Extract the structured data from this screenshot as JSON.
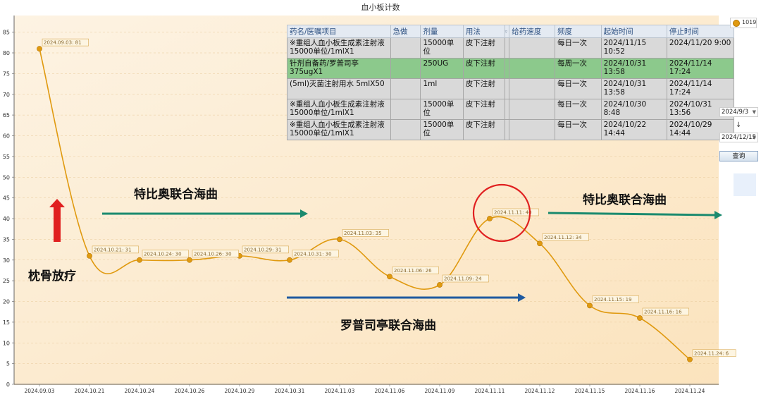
{
  "chart_data": {
    "type": "line",
    "title": "血小板计数",
    "categories": [
      "2024.09.03",
      "2024.10.21",
      "2024.10.24",
      "2024.10.26",
      "2024.10.29",
      "2024.10.31",
      "2024.11.03",
      "2024.11.06",
      "2024.11.09",
      "2024.11.11",
      "2024.11.12",
      "2024.11.15",
      "2024.11.16",
      "2024.11.24"
    ],
    "series": [
      {
        "name": "1019",
        "values": [
          81,
          31,
          30,
          30,
          31,
          30,
          35,
          26,
          24,
          40,
          34,
          19,
          16,
          6
        ]
      }
    ],
    "data_labels": [
      "2024.09.03: 81",
      "2024.10.21: 31",
      "2024.10.24: 30",
      "2024.10.26: 30",
      "2024.10.29: 31",
      "2024.10.31: 30",
      "2024.11.03: 35",
      "2024.11.06: 26",
      "2024.11.09: 24",
      "2024.11.11: 40",
      "2024.11.12: 34",
      "2024.11.15: 19",
      "2024.11.16: 16",
      "2024.11.24: 6"
    ],
    "y_ticks": [
      "0",
      "5",
      "10",
      "15",
      "20",
      "25",
      "30",
      "35",
      "40",
      "45",
      "50",
      "55",
      "60",
      "65",
      "70",
      "75",
      "80",
      "85"
    ],
    "ylim": [
      0,
      88
    ],
    "grid": true,
    "legend": "top-right",
    "line_color": "#e09a10"
  },
  "med_table": {
    "headers": [
      "药名/医嘱项目",
      "急做",
      "剂量",
      "用法",
      "",
      "给药速度",
      "频度",
      "起始时间",
      "停止时间"
    ],
    "rows": [
      [
        "※重组人血小板生成素注射液 15000单位/1mlX1",
        "",
        "15000单位",
        "皮下注射",
        "",
        "",
        "每日一次",
        "2024/11/15 10:52",
        "2024/11/20 9:00"
      ],
      [
        "针剂自备药/罗普司亭 375ugX1",
        "",
        "250UG",
        "皮下注射",
        "",
        "",
        "每周一次",
        "2024/10/31 13:58",
        "2024/11/14 17:24"
      ],
      [
        "(5ml)灭菌注射用水 5mlX50",
        "",
        "1ml",
        "皮下注射",
        "",
        "",
        "每日一次",
        "2024/10/31 13:58",
        "2024/11/14 17:24"
      ],
      [
        "※重组人血小板生成素注射液 15000单位/1mlX1",
        "",
        "15000单位",
        "皮下注射",
        "",
        "",
        "每日一次",
        "2024/10/30 8:48",
        "2024/10/31 13:56"
      ],
      [
        "※重组人血小板生成素注射液 15000单位/1mlX1",
        "",
        "15000单位",
        "皮下注射",
        "",
        "",
        "每日一次",
        "2024/10/22 14:44",
        "2024/10/29 14:44"
      ]
    ],
    "highlight_row": 1,
    "highlight_color": "#8cc98c"
  },
  "controls": {
    "legend_label": "1019",
    "start_date": "2024/9/3",
    "end_date": "2024/12/15",
    "arrow": "↓",
    "query_label": "查询"
  },
  "annotations": {
    "label_radiotherapy": "枕骨放疗",
    "label_treatment_a_1": "特比奥联合海曲",
    "label_treatment_a_2": "特比奥联合海曲",
    "label_treatment_b": "罗普司亭联合海曲",
    "colors": {
      "green_arrow": "#1a8a6e",
      "blue_arrow": "#1f5aa0",
      "red_arrow": "#e02020",
      "red_circle": "#e02020"
    }
  }
}
